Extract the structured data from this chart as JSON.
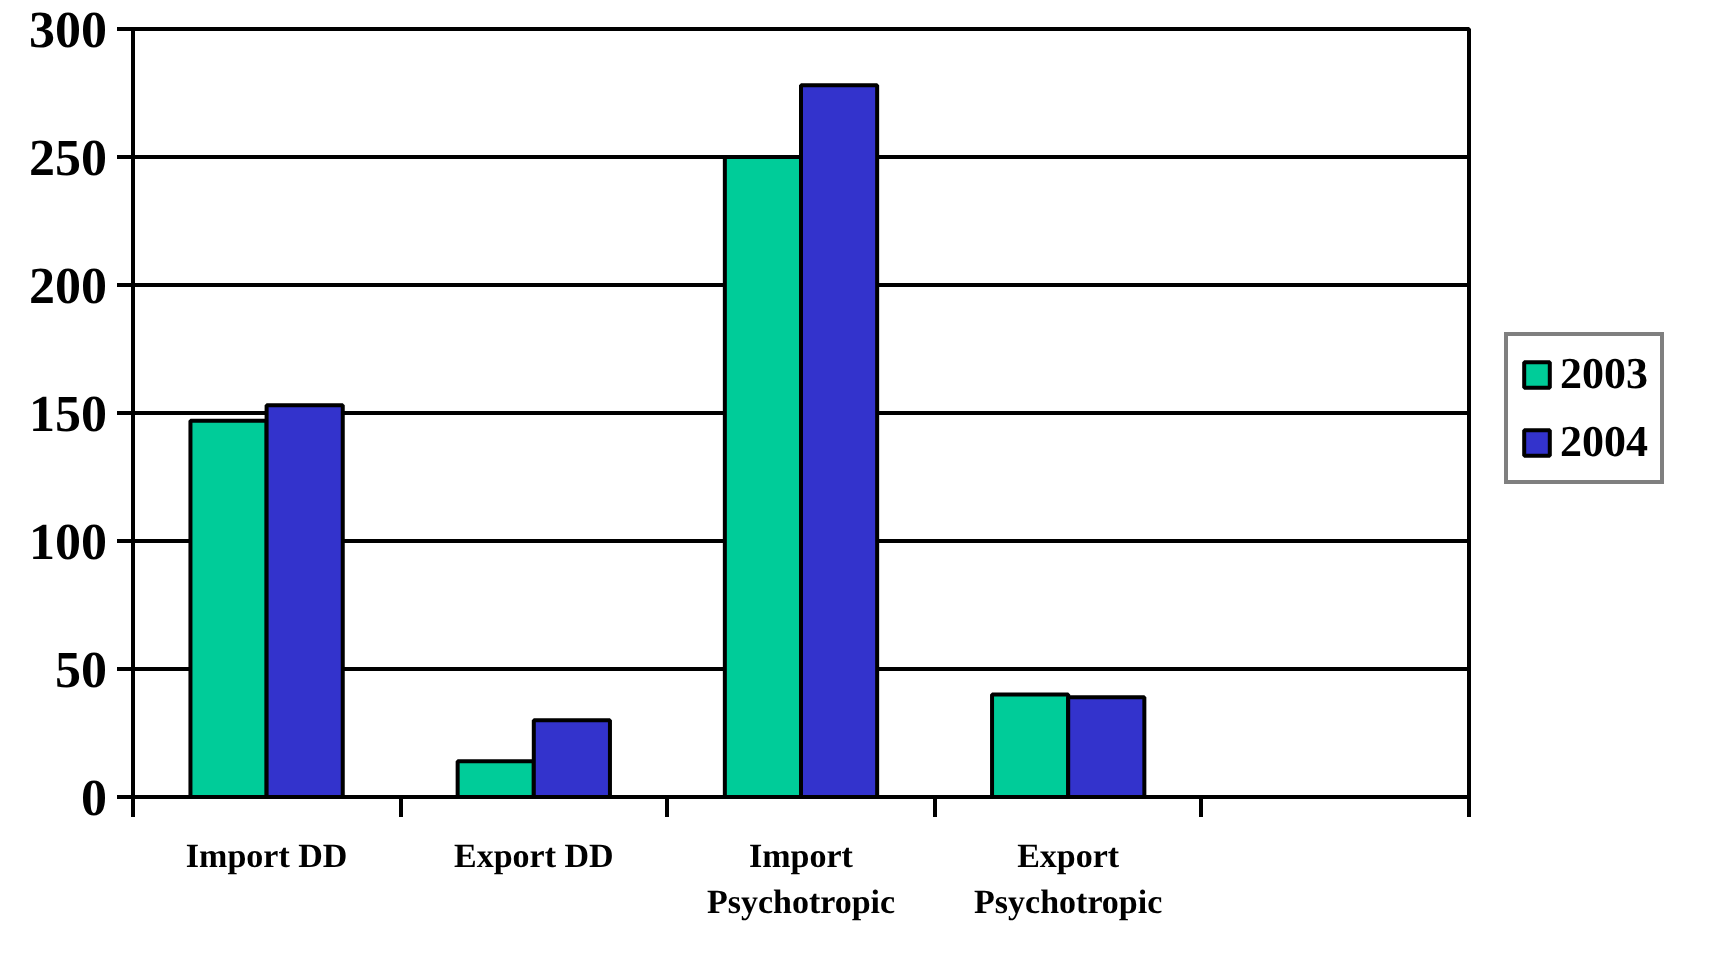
{
  "chart_data": {
    "type": "bar",
    "categories": [
      "Import DD",
      "Export DD",
      "Import Psychotropic",
      "Export Psychotropic",
      null
    ],
    "series": [
      {
        "name": "2003",
        "color": "#00cc99",
        "values": [
          147,
          14,
          250,
          40,
          null
        ]
      },
      {
        "name": "2004",
        "color": "#3333cc",
        "values": [
          153,
          30,
          278,
          39,
          null
        ]
      }
    ],
    "ylim": [
      0,
      300
    ],
    "yticks": [
      0,
      50,
      100,
      150,
      200,
      250,
      300
    ],
    "grid": "y",
    "legend": "right"
  }
}
